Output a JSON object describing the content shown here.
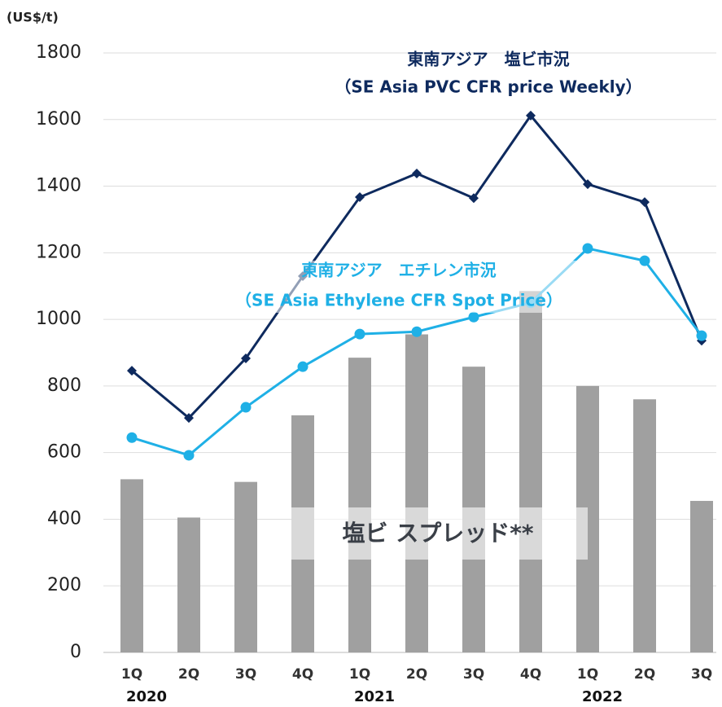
{
  "chart_data": {
    "type": "bar-line",
    "y_label": "(US$/t)",
    "categories": [
      "1Q",
      "2Q",
      "3Q",
      "4Q",
      "1Q",
      "2Q",
      "3Q",
      "4Q",
      "1Q",
      "2Q",
      "3Q"
    ],
    "years": [
      "2020",
      "2021",
      "2022"
    ],
    "ylim": [
      0,
      1800
    ],
    "yticks": [
      0,
      200,
      400,
      600,
      800,
      1000,
      1200,
      1400,
      1600,
      1800
    ],
    "grid": true,
    "series": [
      {
        "type": "bar",
        "color": "#a0a0a0",
        "values": [
          520,
          405,
          512,
          712,
          885,
          955,
          858,
          1085,
          800,
          760,
          455
        ]
      },
      {
        "type": "line",
        "marker": "diamond",
        "color": "#0e2a5e",
        "values": [
          846,
          704,
          883,
          1130,
          1367,
          1438,
          1364,
          1612,
          1406,
          1352,
          936
        ]
      },
      {
        "type": "line",
        "marker": "circle",
        "color": "#1fb0e6",
        "values": [
          645,
          592,
          736,
          858,
          956,
          963,
          1007,
          1050,
          1213,
          1176,
          951
        ]
      }
    ],
    "annotations": [
      {
        "text": "東南アジア　塩ビ市況",
        "color": "#0e2a5e"
      },
      {
        "text": "（SE Asia PVC CFR price Weekly）",
        "color": "#0e2a5e"
      },
      {
        "text": "東南アジア　エチレン市況",
        "color": "#1fb0e6"
      },
      {
        "text": "（SE Asia Ethylene CFR Spot Price）",
        "color": "#1fb0e6"
      },
      {
        "text": "塩ビ スプレッド**",
        "color": "#3a3f47"
      }
    ]
  }
}
